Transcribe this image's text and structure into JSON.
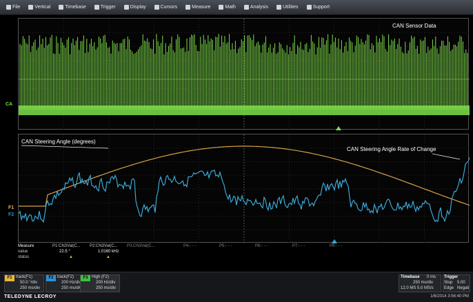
{
  "menu": [
    {
      "label": "File",
      "icon": "file-icon"
    },
    {
      "label": "Vertical",
      "icon": "vertical-icon"
    },
    {
      "label": "Timebase",
      "icon": "timebase-icon"
    },
    {
      "label": "Trigger",
      "icon": "trigger-icon"
    },
    {
      "label": "Display",
      "icon": "display-icon"
    },
    {
      "label": "Cursors",
      "icon": "cursors-icon"
    },
    {
      "label": "Measure",
      "icon": "measure-icon"
    },
    {
      "label": "Math",
      "icon": "math-icon"
    },
    {
      "label": "Analysis",
      "icon": "analysis-icon"
    },
    {
      "label": "Utilities",
      "icon": "utilities-icon"
    },
    {
      "label": "Support",
      "icon": "support-icon"
    }
  ],
  "grid1": {
    "annotation": "CAN Sensor Data",
    "channel_label": "CA"
  },
  "grid2": {
    "annotation_left": "CAN Steering Angle (degrees)",
    "annotation_right": "CAN Steering Angle Rate of Change",
    "f1_label": "F1",
    "f2_label": "F2"
  },
  "colors": {
    "green": "#7fe04a",
    "blue": "#3ba9d8",
    "orange": "#d6a347",
    "f1": "#e8b93a",
    "f2": "#2e8fd6",
    "f3": "#3fbf3f"
  },
  "measure": {
    "row_labels": [
      "Measure",
      "value",
      "status"
    ],
    "params": [
      "P1:CN3Val(C...",
      "P2:CN3Val(C...",
      "P3:CN3Val(C...",
      "P4:- - -",
      "P5:- - -",
      "P6:- - -",
      "P7:- - -",
      "P8:- - -"
    ],
    "values": [
      "22.5 °",
      "1.0160 kHz"
    ]
  },
  "descriptors": [
    {
      "tag": "F1",
      "line1": "track(F1)",
      "line2": "50.0 °/div",
      "line3": "250 ms/div"
    },
    {
      "tag": "F2",
      "line1": "track(F2)",
      "line2": "200 Hz/div",
      "line3": "250 ms/div"
    },
    {
      "tag": "F3",
      "line1": "High (F2)",
      "line2": "200 Hz/div",
      "line3": "250 ms/div"
    }
  ],
  "timebase": {
    "title": "Timebase",
    "offset": "0 ms",
    "line2": "250 ms/div",
    "line3": "12.0 MS   5.0 MS/s"
  },
  "trigger": {
    "title": "Trigger",
    "line2": "Stop",
    "line3": "Edge",
    "value": "5.00",
    "slope": "Negati"
  },
  "brand": "TELEDYNE LECROY",
  "datetime": "1/6/2014 3:56:40 PM"
}
